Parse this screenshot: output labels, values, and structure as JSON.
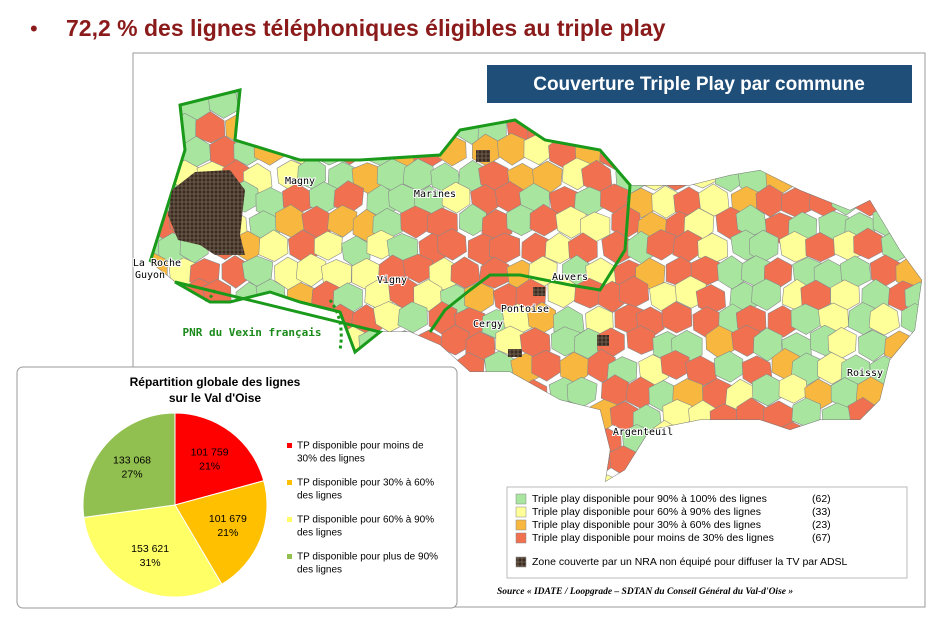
{
  "header": {
    "bullet": "•",
    "title": "72,2 % des lignes téléphoniques éligibles au triple play"
  },
  "map": {
    "title": "Couverture Triple Play par commune",
    "places": [
      "Magny",
      "Marines",
      "La Roche",
      "Guyon",
      "Vigny",
      "Auvers",
      "Pontoise",
      "Cergy",
      "Argenteuil",
      "Roissy"
    ],
    "park_label": "PNR du Vexin français",
    "legend": [
      {
        "label": "Triple play disponible pour 90% à 100% des lignes",
        "count": "(62)"
      },
      {
        "label": "Triple play disponible pour 60% à 90% des lignes",
        "count": "(33)"
      },
      {
        "label": "Triple play disponible pour 30% à 60% des lignes",
        "count": "(23)"
      },
      {
        "label": "Triple play disponible pour moins de 30% des lignes",
        "count": "(67)"
      },
      {
        "label": "Zone couverte par un NRA non équipé pour diffuser la TV par ADSL"
      }
    ],
    "source": "Source « IDATE / Loopgrade – SDTAN du Conseil Général du Val-d'Oise »"
  },
  "chart_data": {
    "type": "pie",
    "title": [
      "Répartition globale des lignes",
      "sur le Val d'Oise"
    ],
    "categories": [
      [
        "TP disponible pour moins de",
        "30% des lignes"
      ],
      [
        "TP disponible pour 30% à 60%",
        "des lignes"
      ],
      [
        "TP disponible pour 60% à 90%",
        "des lignes"
      ],
      [
        "TP disponible pour plus de 90%",
        "des lignes"
      ]
    ],
    "values": [
      101759,
      101679,
      153621,
      133068
    ],
    "value_labels": [
      "101 759",
      "101 679",
      "153 621",
      "133 068"
    ],
    "percent_labels": [
      "21%",
      "21%",
      "31%",
      "27%"
    ],
    "colors": [
      "#ff0000",
      "#ffc000",
      "#ffff66",
      "#92c050"
    ]
  }
}
